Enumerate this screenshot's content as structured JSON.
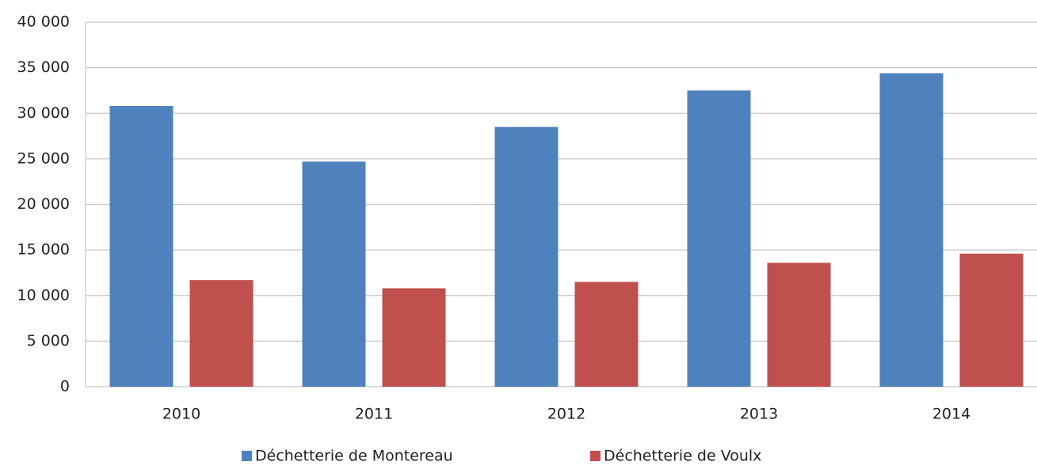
{
  "chart_data": {
    "type": "bar",
    "categories": [
      "2010",
      "2011",
      "2012",
      "2013",
      "2014"
    ],
    "series": [
      {
        "name": "Déchetterie de Montereau",
        "color": "#4f81bd",
        "values": [
          30800,
          24700,
          28500,
          32500,
          34400
        ]
      },
      {
        "name": "Déchetterie de Voulx",
        "color": "#c0504d",
        "values": [
          11700,
          10800,
          11500,
          13600,
          14600
        ]
      }
    ],
    "ylim": [
      0,
      40000
    ],
    "yticks": [
      0,
      {
        "value": 5000,
        "label": "5 000"
      },
      {
        "value": 10000,
        "label": "10 000"
      },
      {
        "value": 15000,
        "label": "15 000"
      },
      {
        "value": 20000,
        "label": "20 000"
      },
      {
        "value": 25000,
        "label": "25 000"
      },
      {
        "value": 30000,
        "label": "30 000"
      },
      {
        "value": 35000,
        "label": "35 000"
      },
      {
        "value": 40000,
        "label": "40 000"
      }
    ],
    "grid": true
  }
}
